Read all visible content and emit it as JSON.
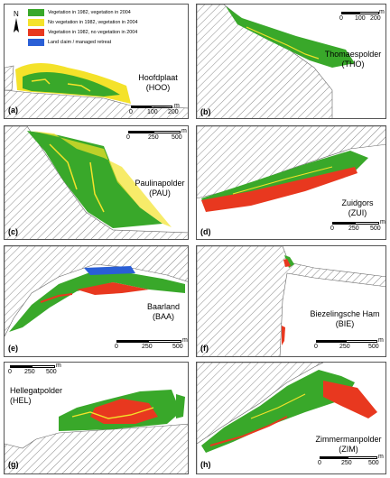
{
  "colors": {
    "veg_both": "#39a82a",
    "veg_new": "#f4e22a",
    "veg_lost": "#e8381f",
    "land_claim": "#2a5fd6",
    "hatch": "#888888"
  },
  "legend": {
    "items": [
      {
        "label": "Vegetation in 1982, vegetation in 2004",
        "color_key": "veg_both"
      },
      {
        "label": "No vegetation in 1982, vegetation in 2004",
        "color_key": "veg_new"
      },
      {
        "label": "Vegetation in 1982, no vegetation in 2004",
        "color_key": "veg_lost"
      },
      {
        "label": "Land claim / managed retreat",
        "color_key": "land_claim"
      }
    ]
  },
  "north_arrow": {
    "label": "N",
    "icon": "north-arrow-icon"
  },
  "panels": [
    {
      "id": "a",
      "letter": "(a)",
      "name": "Hoofdplaat",
      "code": "(HOO)",
      "scale": [
        "0",
        "100",
        "200"
      ],
      "unit": "m"
    },
    {
      "id": "b",
      "letter": "(b)",
      "name": "Thomaespolder",
      "code": "(THO)",
      "scale": [
        "0",
        "100",
        "200"
      ],
      "unit": "m"
    },
    {
      "id": "c",
      "letter": "(c)",
      "name": "Paulinapolder",
      "code": "(PAU)",
      "scale": [
        "0",
        "250",
        "500"
      ],
      "unit": "m"
    },
    {
      "id": "d",
      "letter": "(d)",
      "name": "Zuidgors",
      "code": "(ZUI)",
      "scale": [
        "0",
        "250",
        "500"
      ],
      "unit": "m"
    },
    {
      "id": "e",
      "letter": "(e)",
      "name": "Baarland",
      "code": "(BAA)",
      "scale": [
        "0",
        "250",
        "500"
      ],
      "unit": "m"
    },
    {
      "id": "f",
      "letter": "(f)",
      "name": "Biezelingsche Ham",
      "code": "(BIE)",
      "scale": [
        "0",
        "250",
        "500"
      ],
      "unit": "m"
    },
    {
      "id": "g",
      "letter": "(g)",
      "name": "Hellegatpolder",
      "code": "(HEL)",
      "scale": [
        "0",
        "250",
        "500"
      ],
      "unit": "m"
    },
    {
      "id": "h",
      "letter": "(h)",
      "name": "Zimmermanpolder",
      "code": "(ZIM)",
      "scale": [
        "0",
        "250",
        "500"
      ],
      "unit": "m"
    }
  ]
}
